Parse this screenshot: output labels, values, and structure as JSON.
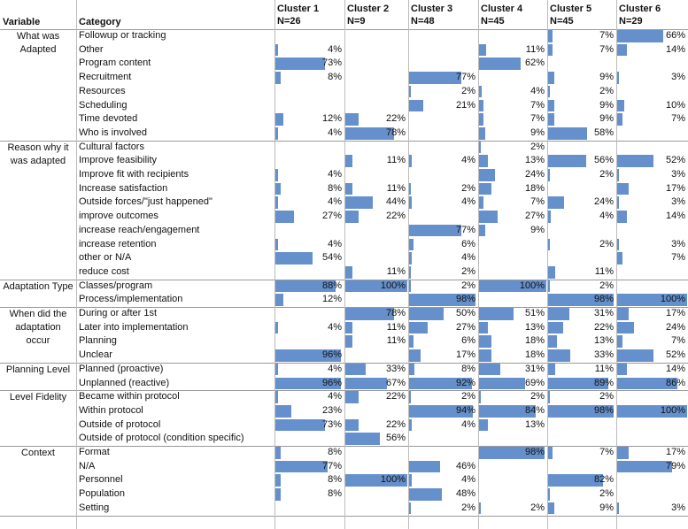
{
  "table": {
    "header": {
      "variable": "Variable",
      "category": "Category",
      "clusters": [
        [
          "Cluster 1",
          "N=26"
        ],
        [
          "Cluster 2",
          "N=9"
        ],
        [
          "Cluster 3",
          "N=48"
        ],
        [
          "Cluster 4",
          "N=45"
        ],
        [
          "Cluster 5",
          "N=45"
        ],
        [
          "Cluster 6",
          "N=29"
        ]
      ]
    },
    "groups": [
      {
        "variable": "What was Adapted",
        "rows": [
          {
            "category": "Followup or tracking",
            "cells": [
              null,
              null,
              null,
              null,
              "7%",
              "66%"
            ]
          },
          {
            "category": "Other",
            "cells": [
              "4%",
              null,
              null,
              "11%",
              "7%",
              "14%"
            ]
          },
          {
            "category": "Program content",
            "cells": [
              "73%",
              null,
              null,
              "62%",
              null,
              null
            ]
          },
          {
            "category": "Recruitment",
            "cells": [
              "8%",
              null,
              "77%",
              null,
              "9%",
              "3%"
            ]
          },
          {
            "category": "Resources",
            "cells": [
              null,
              null,
              "2%",
              "4%",
              "2%",
              null
            ]
          },
          {
            "category": "Scheduling",
            "cells": [
              null,
              null,
              "21%",
              "7%",
              "9%",
              "10%"
            ]
          },
          {
            "category": "Time devoted",
            "cells": [
              "12%",
              "22%",
              null,
              "7%",
              "9%",
              "7%"
            ]
          },
          {
            "category": "Who is involved",
            "cells": [
              "4%",
              "78%",
              null,
              "9%",
              "58%",
              null
            ]
          }
        ]
      },
      {
        "variable": "Reason why it was adapted",
        "rows": [
          {
            "category": "Cultural factors",
            "cells": [
              null,
              null,
              null,
              "2%",
              null,
              null
            ]
          },
          {
            "category": "Improve feasibility",
            "cells": [
              null,
              "11%",
              "4%",
              "13%",
              "56%",
              "52%"
            ]
          },
          {
            "category": "Improve fit with recipients",
            "cells": [
              "4%",
              null,
              null,
              "24%",
              "2%",
              "3%"
            ]
          },
          {
            "category": "Increase satisfaction",
            "cells": [
              "8%",
              "11%",
              "2%",
              "18%",
              null,
              "17%"
            ]
          },
          {
            "category": "Outside forces/\"just happened\"",
            "cells": [
              "4%",
              "44%",
              "4%",
              "7%",
              "24%",
              "3%"
            ]
          },
          {
            "category": "improve outcomes",
            "cells": [
              "27%",
              "22%",
              null,
              "27%",
              "4%",
              "14%"
            ]
          },
          {
            "category": "increase reach/engagement",
            "cells": [
              null,
              null,
              "77%",
              "9%",
              null,
              null
            ]
          },
          {
            "category": "increase retention",
            "cells": [
              "4%",
              null,
              "6%",
              null,
              "2%",
              "3%"
            ]
          },
          {
            "category": "other or N/A",
            "cells": [
              "54%",
              null,
              "4%",
              null,
              null,
              "7%"
            ]
          },
          {
            "category": "reduce cost",
            "cells": [
              null,
              "11%",
              "2%",
              null,
              "11%",
              null
            ]
          }
        ]
      },
      {
        "variable": "Adaptation Type",
        "rows": [
          {
            "category": "Classes/program",
            "cells": [
              "88%",
              "100%",
              "2%",
              "100%",
              "2%",
              null
            ]
          },
          {
            "category": "Process/implementation",
            "cells": [
              "12%",
              null,
              "98%",
              null,
              "98%",
              "100%"
            ]
          }
        ]
      },
      {
        "variable": "When did the adaptation occur",
        "rows": [
          {
            "category": "During or after 1st",
            "cells": [
              null,
              "78%",
              "50%",
              "51%",
              "31%",
              "17%"
            ]
          },
          {
            "category": "Later into implementation",
            "cells": [
              "4%",
              "11%",
              "27%",
              "13%",
              "22%",
              "24%"
            ]
          },
          {
            "category": "Planning",
            "cells": [
              null,
              "11%",
              "6%",
              "18%",
              "13%",
              "7%"
            ]
          },
          {
            "category": "Unclear",
            "cells": [
              "96%",
              null,
              "17%",
              "18%",
              "33%",
              "52%"
            ]
          }
        ]
      },
      {
        "variable": "Planning Level",
        "rows": [
          {
            "category": "Planned (proactive)",
            "cells": [
              "4%",
              "33%",
              "8%",
              "31%",
              "11%",
              "14%"
            ]
          },
          {
            "category": "Unplanned (reactive)",
            "cells": [
              "96%",
              "67%",
              "92%",
              "69%",
              "89%",
              "86%"
            ]
          }
        ]
      },
      {
        "variable": "Level Fidelity",
        "rows": [
          {
            "category": "Became within protocol",
            "cells": [
              "4%",
              "22%",
              "2%",
              "2%",
              "2%",
              null
            ]
          },
          {
            "category": "Within protocol",
            "cells": [
              "23%",
              null,
              "94%",
              "84%",
              "98%",
              "100%"
            ]
          },
          {
            "category": "Outside of protocol",
            "cells": [
              "73%",
              "22%",
              "4%",
              "13%",
              null,
              null
            ]
          },
          {
            "category": "Outside of protocol (condition specific)",
            "cells": [
              null,
              "56%",
              null,
              null,
              null,
              null
            ]
          }
        ]
      },
      {
        "variable": "Context",
        "rows": [
          {
            "category": "Format",
            "cells": [
              "8%",
              null,
              null,
              "98%",
              "7%",
              "17%"
            ]
          },
          {
            "category": "N/A",
            "cells": [
              "77%",
              null,
              "46%",
              null,
              null,
              "79%"
            ]
          },
          {
            "category": "Personnel",
            "cells": [
              "8%",
              "100%",
              "4%",
              null,
              "82%",
              null
            ]
          },
          {
            "category": "Population",
            "cells": [
              "8%",
              null,
              "48%",
              null,
              "2%",
              null
            ]
          },
          {
            "category": "Setting",
            "cells": [
              null,
              null,
              "2%",
              "2%",
              "9%",
              "3%"
            ]
          }
        ]
      }
    ]
  }
}
